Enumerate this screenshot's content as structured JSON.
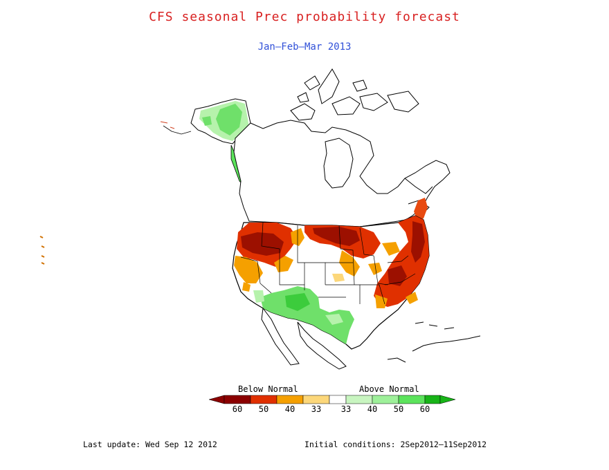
{
  "header": {
    "title": "CFS seasonal Prec probability forecast",
    "subtitle": "Jan—Feb—Mar 2013"
  },
  "legend": {
    "below_label": "Below Normal",
    "above_label": "Above Normal",
    "ticks": [
      "60",
      "50",
      "40",
      "33",
      "33",
      "40",
      "50",
      "60"
    ],
    "colors": {
      "below_60": "#8b0000",
      "below_50": "#e03000",
      "below_40": "#f5a000",
      "below_33": "#fcd77a",
      "normal": "#ffffff",
      "above_33": "#c8f5c0",
      "above_40": "#9ef09a",
      "above_50": "#5ce35c",
      "above_60": "#18b418"
    }
  },
  "footer": {
    "last_update": "Last update: Wed Sep 12 2012",
    "initial_conditions": "Initial conditions: 2Sep2012—11Sep2012"
  }
}
